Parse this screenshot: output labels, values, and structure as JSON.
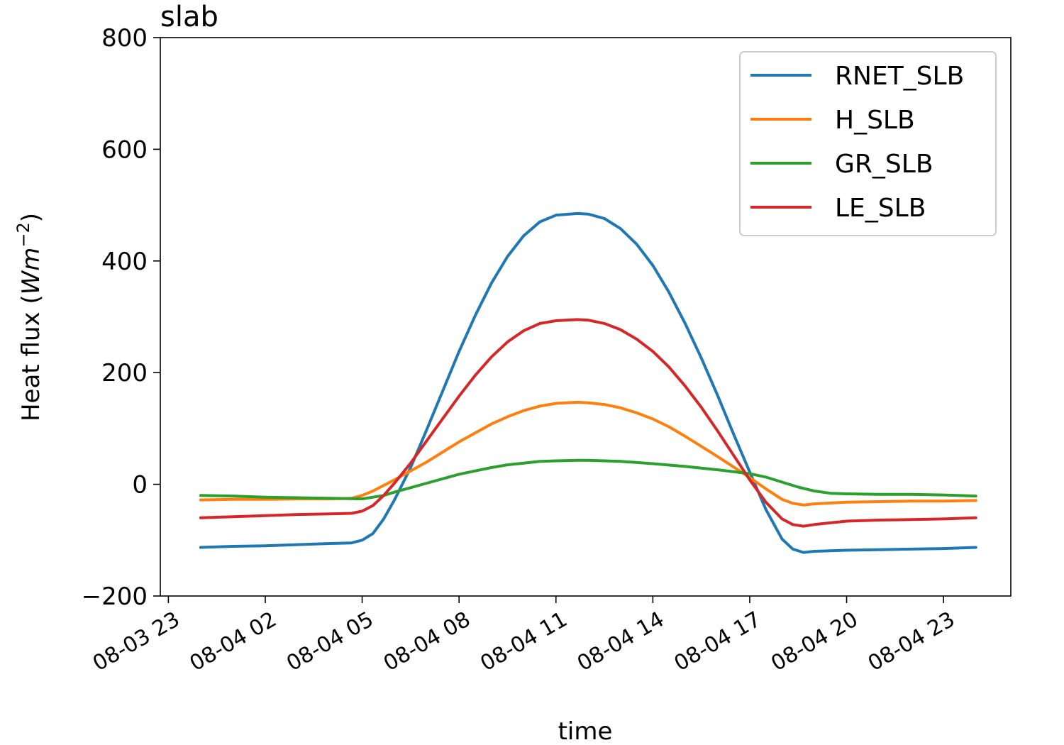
{
  "chart_data": {
    "type": "line",
    "title": "slab",
    "xlabel": "time",
    "ylabel": "Heat flux (",
    "ylabel_unit": {
      "base": "Wm",
      "exponent": "−2"
    },
    "ylabel_close": ")",
    "ylim": [
      -200,
      800
    ],
    "y_ticks": [
      -200,
      0,
      200,
      400,
      600,
      800
    ],
    "y_tick_labels": [
      "−200",
      "0",
      "200",
      "400",
      "600",
      "800"
    ],
    "xlim": [
      "2018-08-03 22:45",
      "2018-08-05 01:05"
    ],
    "x_ticks": [
      "2018-08-03 23:00",
      "2018-08-04 02:00",
      "2018-08-04 05:00",
      "2018-08-04 08:00",
      "2018-08-04 11:00",
      "2018-08-04 14:00",
      "2018-08-04 17:00",
      "2018-08-04 20:00",
      "2018-08-04 23:00"
    ],
    "x_tick_labels": [
      "08-03 23",
      "08-04 02",
      "08-04 05",
      "08-04 08",
      "08-04 11",
      "08-04 14",
      "08-04 17",
      "08-04 20",
      "08-04 23"
    ],
    "grid": false,
    "legend_position": "top-right",
    "series": [
      {
        "name": "RNET_SLB",
        "color": "#1f77b4",
        "points": [
          [
            "2018-08-04 00:00",
            -113
          ],
          [
            "2018-08-04 01:00",
            -111
          ],
          [
            "2018-08-04 02:00",
            -110
          ],
          [
            "2018-08-04 03:00",
            -108
          ],
          [
            "2018-08-04 04:00",
            -106
          ],
          [
            "2018-08-04 04:40",
            -105
          ],
          [
            "2018-08-04 05:00",
            -100
          ],
          [
            "2018-08-04 05:20",
            -88
          ],
          [
            "2018-08-04 05:40",
            -62
          ],
          [
            "2018-08-04 06:00",
            -28
          ],
          [
            "2018-08-04 06:30",
            30
          ],
          [
            "2018-08-04 07:00",
            98
          ],
          [
            "2018-08-04 07:30",
            168
          ],
          [
            "2018-08-04 08:00",
            238
          ],
          [
            "2018-08-04 08:30",
            302
          ],
          [
            "2018-08-04 09:00",
            360
          ],
          [
            "2018-08-04 09:30",
            408
          ],
          [
            "2018-08-04 10:00",
            445
          ],
          [
            "2018-08-04 10:30",
            470
          ],
          [
            "2018-08-04 11:00",
            482
          ],
          [
            "2018-08-04 11:40",
            485
          ],
          [
            "2018-08-04 12:00",
            484
          ],
          [
            "2018-08-04 12:30",
            476
          ],
          [
            "2018-08-04 13:00",
            458
          ],
          [
            "2018-08-04 13:30",
            430
          ],
          [
            "2018-08-04 14:00",
            392
          ],
          [
            "2018-08-04 14:30",
            344
          ],
          [
            "2018-08-04 15:00",
            288
          ],
          [
            "2018-08-04 15:30",
            226
          ],
          [
            "2018-08-04 16:00",
            160
          ],
          [
            "2018-08-04 16:30",
            90
          ],
          [
            "2018-08-04 17:00",
            22
          ],
          [
            "2018-08-04 17:30",
            -45
          ],
          [
            "2018-08-04 18:00",
            -98
          ],
          [
            "2018-08-04 18:20",
            -116
          ],
          [
            "2018-08-04 18:40",
            -122
          ],
          [
            "2018-08-04 19:00",
            -120
          ],
          [
            "2018-08-04 20:00",
            -118
          ],
          [
            "2018-08-04 21:00",
            -117
          ],
          [
            "2018-08-04 22:00",
            -116
          ],
          [
            "2018-08-04 23:00",
            -115
          ],
          [
            "2018-08-05 00:00",
            -113
          ]
        ]
      },
      {
        "name": "H_SLB",
        "color": "#ff7f0e",
        "points": [
          [
            "2018-08-04 00:00",
            -28
          ],
          [
            "2018-08-04 01:00",
            -27
          ],
          [
            "2018-08-04 02:00",
            -27
          ],
          [
            "2018-08-04 03:00",
            -26
          ],
          [
            "2018-08-04 04:00",
            -26
          ],
          [
            "2018-08-04 04:40",
            -25
          ],
          [
            "2018-08-04 05:00",
            -20
          ],
          [
            "2018-08-04 05:20",
            -12
          ],
          [
            "2018-08-04 05:40",
            -2
          ],
          [
            "2018-08-04 06:00",
            8
          ],
          [
            "2018-08-04 06:30",
            24
          ],
          [
            "2018-08-04 07:00",
            40
          ],
          [
            "2018-08-04 07:30",
            58
          ],
          [
            "2018-08-04 08:00",
            76
          ],
          [
            "2018-08-04 08:30",
            92
          ],
          [
            "2018-08-04 09:00",
            108
          ],
          [
            "2018-08-04 09:30",
            121
          ],
          [
            "2018-08-04 10:00",
            132
          ],
          [
            "2018-08-04 10:30",
            140
          ],
          [
            "2018-08-04 11:00",
            145
          ],
          [
            "2018-08-04 11:40",
            147
          ],
          [
            "2018-08-04 12:00",
            146
          ],
          [
            "2018-08-04 12:30",
            143
          ],
          [
            "2018-08-04 13:00",
            137
          ],
          [
            "2018-08-04 13:30",
            128
          ],
          [
            "2018-08-04 14:00",
            117
          ],
          [
            "2018-08-04 14:30",
            103
          ],
          [
            "2018-08-04 15:00",
            86
          ],
          [
            "2018-08-04 15:30",
            68
          ],
          [
            "2018-08-04 16:00",
            50
          ],
          [
            "2018-08-04 16:30",
            31
          ],
          [
            "2018-08-04 17:00",
            12
          ],
          [
            "2018-08-04 17:30",
            -8
          ],
          [
            "2018-08-04 18:00",
            -27
          ],
          [
            "2018-08-04 18:20",
            -34
          ],
          [
            "2018-08-04 18:40",
            -37
          ],
          [
            "2018-08-04 19:00",
            -35
          ],
          [
            "2018-08-04 20:00",
            -32
          ],
          [
            "2018-08-04 21:00",
            -31
          ],
          [
            "2018-08-04 22:00",
            -30
          ],
          [
            "2018-08-04 23:00",
            -30
          ],
          [
            "2018-08-05 00:00",
            -29
          ]
        ]
      },
      {
        "name": "GR_SLB",
        "color": "#2ca02c",
        "points": [
          [
            "2018-08-04 00:00",
            -20
          ],
          [
            "2018-08-04 01:00",
            -21
          ],
          [
            "2018-08-04 02:00",
            -23
          ],
          [
            "2018-08-04 03:00",
            -24
          ],
          [
            "2018-08-04 04:00",
            -25
          ],
          [
            "2018-08-04 05:00",
            -26
          ],
          [
            "2018-08-04 05:40",
            -20
          ],
          [
            "2018-08-04 06:00",
            -14
          ],
          [
            "2018-08-04 06:30",
            -6
          ],
          [
            "2018-08-04 07:00",
            2
          ],
          [
            "2018-08-04 07:30",
            10
          ],
          [
            "2018-08-04 08:00",
            18
          ],
          [
            "2018-08-04 08:30",
            24
          ],
          [
            "2018-08-04 09:00",
            30
          ],
          [
            "2018-08-04 09:30",
            35
          ],
          [
            "2018-08-04 10:00",
            38
          ],
          [
            "2018-08-04 10:30",
            41
          ],
          [
            "2018-08-04 11:00",
            42
          ],
          [
            "2018-08-04 11:40",
            43
          ],
          [
            "2018-08-04 12:00",
            43
          ],
          [
            "2018-08-04 13:00",
            41
          ],
          [
            "2018-08-04 14:00",
            37
          ],
          [
            "2018-08-04 15:00",
            32
          ],
          [
            "2018-08-04 16:00",
            26
          ],
          [
            "2018-08-04 17:00",
            19
          ],
          [
            "2018-08-04 17:30",
            13
          ],
          [
            "2018-08-04 18:00",
            4
          ],
          [
            "2018-08-04 18:30",
            -5
          ],
          [
            "2018-08-04 19:00",
            -12
          ],
          [
            "2018-08-04 19:30",
            -16
          ],
          [
            "2018-08-04 20:00",
            -17
          ],
          [
            "2018-08-04 21:00",
            -18
          ],
          [
            "2018-08-04 22:00",
            -18
          ],
          [
            "2018-08-04 23:00",
            -19
          ],
          [
            "2018-08-05 00:00",
            -21
          ]
        ]
      },
      {
        "name": "LE_SLB",
        "color": "#d62728",
        "points": [
          [
            "2018-08-04 00:00",
            -60
          ],
          [
            "2018-08-04 01:00",
            -58
          ],
          [
            "2018-08-04 02:00",
            -56
          ],
          [
            "2018-08-04 03:00",
            -54
          ],
          [
            "2018-08-04 04:00",
            -53
          ],
          [
            "2018-08-04 04:40",
            -52
          ],
          [
            "2018-08-04 05:00",
            -48
          ],
          [
            "2018-08-04 05:20",
            -38
          ],
          [
            "2018-08-04 05:40",
            -20
          ],
          [
            "2018-08-04 06:00",
            2
          ],
          [
            "2018-08-04 06:30",
            38
          ],
          [
            "2018-08-04 07:00",
            78
          ],
          [
            "2018-08-04 07:30",
            118
          ],
          [
            "2018-08-04 08:00",
            158
          ],
          [
            "2018-08-04 08:30",
            195
          ],
          [
            "2018-08-04 09:00",
            228
          ],
          [
            "2018-08-04 09:30",
            255
          ],
          [
            "2018-08-04 10:00",
            275
          ],
          [
            "2018-08-04 10:30",
            288
          ],
          [
            "2018-08-04 11:00",
            293
          ],
          [
            "2018-08-04 11:40",
            295
          ],
          [
            "2018-08-04 12:00",
            294
          ],
          [
            "2018-08-04 12:30",
            288
          ],
          [
            "2018-08-04 13:00",
            277
          ],
          [
            "2018-08-04 13:30",
            260
          ],
          [
            "2018-08-04 14:00",
            238
          ],
          [
            "2018-08-04 14:30",
            210
          ],
          [
            "2018-08-04 15:00",
            176
          ],
          [
            "2018-08-04 15:30",
            138
          ],
          [
            "2018-08-04 16:00",
            96
          ],
          [
            "2018-08-04 16:30",
            52
          ],
          [
            "2018-08-04 17:00",
            8
          ],
          [
            "2018-08-04 17:30",
            -32
          ],
          [
            "2018-08-04 18:00",
            -62
          ],
          [
            "2018-08-04 18:20",
            -72
          ],
          [
            "2018-08-04 18:40",
            -75
          ],
          [
            "2018-08-04 19:00",
            -72
          ],
          [
            "2018-08-04 20:00",
            -66
          ],
          [
            "2018-08-04 21:00",
            -64
          ],
          [
            "2018-08-04 22:00",
            -63
          ],
          [
            "2018-08-04 23:00",
            -62
          ],
          [
            "2018-08-05 00:00",
            -60
          ]
        ]
      }
    ]
  }
}
